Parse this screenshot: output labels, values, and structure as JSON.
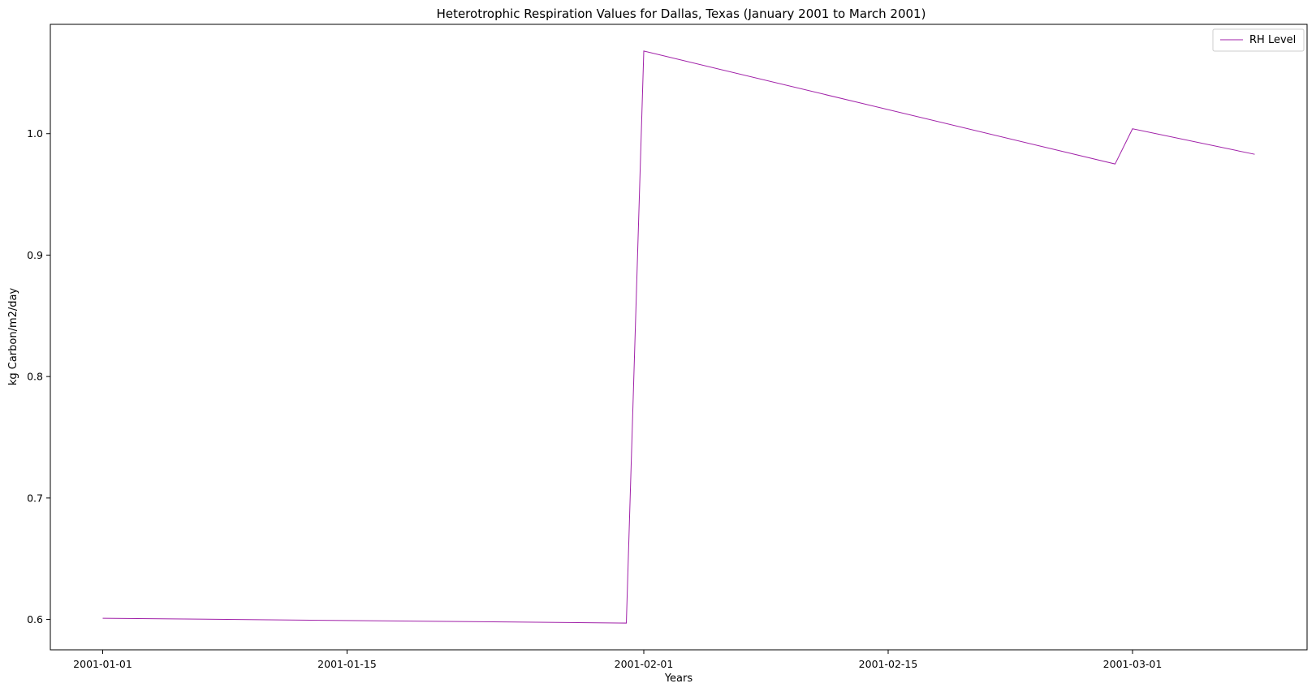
{
  "chart_data": {
    "type": "line",
    "title": "Heterotrophic Respiration Values for Dallas, Texas (January 2001 to March 2001)",
    "xlabel": "Years",
    "ylabel": "kg Carbon/m2/day",
    "x_ticks": [
      "2001-01-01",
      "2001-01-15",
      "2001-02-01",
      "2001-02-15",
      "2001-03-01"
    ],
    "y_ticks": [
      "0.6",
      "0.7",
      "0.8",
      "0.9",
      "1.0"
    ],
    "xlim": [
      "2000-12-29",
      "2001-03-11"
    ],
    "ylim": [
      0.575,
      1.09
    ],
    "grid": false,
    "legend_position": "upper right",
    "series": [
      {
        "name": "RH Level",
        "color": "#a020a8",
        "x": [
          "2001-01-01",
          "2001-01-31",
          "2001-02-01",
          "2001-02-28",
          "2001-03-01",
          "2001-03-08"
        ],
        "y": [
          0.601,
          0.597,
          1.068,
          0.975,
          1.004,
          0.983
        ]
      }
    ]
  }
}
